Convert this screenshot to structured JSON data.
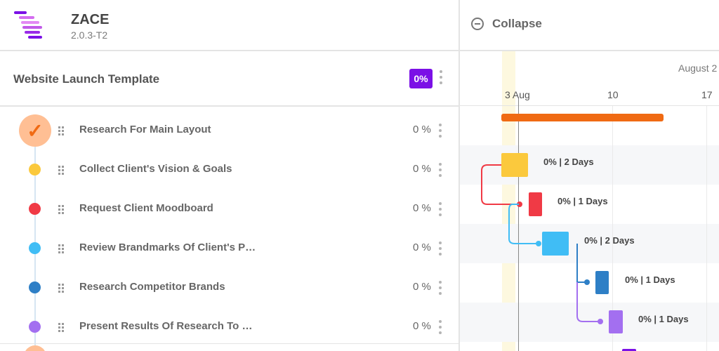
{
  "app": {
    "name": "ZACE",
    "version": "2.0.3-T2"
  },
  "project": {
    "title": "Website Launch Template",
    "progress": "0%"
  },
  "tasks": [
    {
      "name": "Research For Main Layout",
      "progress": "0 %",
      "status": "done",
      "color": "#f06a13"
    },
    {
      "name": "Collect Client's Vision & Goals",
      "progress": "0 %",
      "color": "#fbc93d"
    },
    {
      "name": "Request Client Moodboard",
      "progress": "0 %",
      "color": "#f03a45"
    },
    {
      "name": "Review Brandmarks Of Client's P…",
      "progress": "0 %",
      "color": "#40bdf5"
    },
    {
      "name": "Research Competitor Brands",
      "progress": "0 %",
      "color": "#2e7fc6"
    },
    {
      "name": "Present Results Of Research To …",
      "progress": "0 %",
      "color": "#a36ff0"
    }
  ],
  "gantt": {
    "collapse_label": "Collapse",
    "month_label": "August 2",
    "days": [
      "3 Aug",
      "10",
      "17"
    ],
    "bar_labels": [
      "0% | 2 Days",
      "0% | 1 Days",
      "0% | 2 Days",
      "0% | 1 Days",
      "0% | 1 Days"
    ],
    "summary_color": "#f06a13",
    "next_bar_color": "#7b10e6"
  }
}
